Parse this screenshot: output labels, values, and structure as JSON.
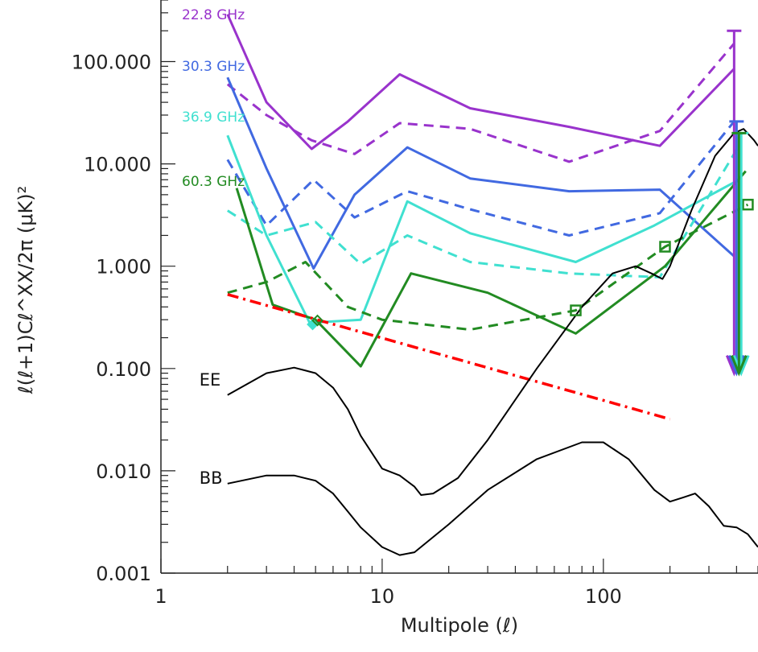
{
  "chart_data": {
    "type": "line",
    "title": "",
    "xlabel": "Multipole (ℓ)",
    "ylabel": "ℓ(ℓ+1)Cℓ^XX/2π   (μK)²",
    "x_scale": "log",
    "y_scale": "log",
    "xlim": [
      1,
      500
    ],
    "ylim": [
      0.001,
      400
    ],
    "x_ticks": [
      {
        "value": 1,
        "label": "1"
      },
      {
        "value": 10,
        "label": "10"
      },
      {
        "value": 100,
        "label": "100"
      }
    ],
    "y_ticks": [
      {
        "value": 0.001,
        "label": "0.001"
      },
      {
        "value": 0.01,
        "label": "0.010"
      },
      {
        "value": 0.1,
        "label": "0.100"
      },
      {
        "value": 1,
        "label": "1.000"
      },
      {
        "value": 10,
        "label": "10.000"
      },
      {
        "value": 100,
        "label": "100.000"
      }
    ],
    "grid": false,
    "series": [
      {
        "name": "22.8 GHz",
        "color": "#9933cc",
        "style": "solid",
        "points": [
          [
            2,
            290
          ],
          [
            3,
            40
          ],
          [
            4.8,
            14
          ],
          [
            7,
            26
          ],
          [
            12,
            75
          ],
          [
            25,
            35
          ],
          [
            70,
            23
          ],
          [
            180,
            15
          ],
          [
            390,
            85
          ]
        ]
      },
      {
        "name": "",
        "color": "#9933cc",
        "style": "dashed",
        "points": [
          [
            2,
            60
          ],
          [
            3,
            30
          ],
          [
            4.8,
            17
          ],
          [
            7.5,
            12.5
          ],
          [
            12,
            25
          ],
          [
            25,
            22
          ],
          [
            70,
            10.5
          ],
          [
            180,
            21
          ],
          [
            390,
            150
          ]
        ]
      },
      {
        "name": "30.3 GHz",
        "color": "#4169e1",
        "style": "solid",
        "points": [
          [
            2,
            70
          ],
          [
            3,
            9
          ],
          [
            4.9,
            0.95
          ],
          [
            7.5,
            5
          ],
          [
            13,
            14.5
          ],
          [
            25,
            7.2
          ],
          [
            70,
            5.4
          ],
          [
            180,
            5.6
          ],
          [
            390,
            1.25
          ]
        ]
      },
      {
        "name": "",
        "color": "#4169e1",
        "style": "dashed",
        "points": [
          [
            2,
            11
          ],
          [
            3,
            2.5
          ],
          [
            4.9,
            7
          ],
          [
            7.5,
            3
          ],
          [
            13,
            5.4
          ],
          [
            25,
            3.6
          ],
          [
            70,
            2
          ],
          [
            180,
            3.3
          ],
          [
            390,
            26
          ]
        ]
      },
      {
        "name": "36.9 GHz",
        "color": "#40e0d0",
        "style": "solid",
        "points": [
          [
            2,
            19
          ],
          [
            3,
            2
          ],
          [
            4.7,
            0.28
          ],
          [
            8,
            0.3
          ],
          [
            13,
            4.3
          ],
          [
            25,
            2.1
          ],
          [
            75,
            1.1
          ],
          [
            170,
            2.5
          ],
          [
            410,
            7
          ]
        ]
      },
      {
        "name": "",
        "color": "#40e0d0",
        "style": "dashed",
        "points": [
          [
            2,
            3.5
          ],
          [
            3,
            2
          ],
          [
            5,
            2.7
          ],
          [
            8,
            1.05
          ],
          [
            13,
            2
          ],
          [
            25,
            1.1
          ],
          [
            70,
            0.85
          ],
          [
            180,
            0.78
          ],
          [
            410,
            15
          ]
        ]
      },
      {
        "name": "60.3 GHz",
        "color": "#228b22",
        "style": "solid",
        "points": [
          [
            2.2,
            5.8
          ],
          [
            3.2,
            0.42
          ],
          [
            5,
            0.3
          ],
          [
            8,
            0.105
          ],
          [
            13.5,
            0.85
          ],
          [
            30,
            0.55
          ],
          [
            75,
            0.22
          ],
          [
            190,
            1
          ],
          [
            440,
            8.5
          ]
        ]
      },
      {
        "name": "",
        "color": "#228b22",
        "style": "dashed",
        "points": [
          [
            2,
            0.55
          ],
          [
            3,
            0.7
          ],
          [
            4.5,
            1.1
          ],
          [
            7,
            0.4
          ],
          [
            10,
            0.3
          ],
          [
            25,
            0.24
          ],
          [
            75,
            0.37
          ],
          [
            190,
            1.55
          ],
          [
            450,
            4
          ]
        ]
      },
      {
        "name": "",
        "color": "#ff0000",
        "style": "dashdot",
        "points": [
          [
            2,
            0.53
          ],
          [
            200,
            0.032
          ]
        ]
      },
      {
        "name": "EE",
        "color": "#000000",
        "style": "solid",
        "points": [
          [
            2,
            0.055
          ],
          [
            3,
            0.09
          ],
          [
            4,
            0.102
          ],
          [
            5,
            0.09
          ],
          [
            6,
            0.065
          ],
          [
            7,
            0.04
          ],
          [
            8,
            0.022
          ],
          [
            10,
            0.0105
          ],
          [
            12,
            0.009
          ],
          [
            14,
            0.007
          ],
          [
            15,
            0.0058
          ],
          [
            17,
            0.006
          ],
          [
            22,
            0.0085
          ],
          [
            30,
            0.02
          ],
          [
            50,
            0.1
          ],
          [
            80,
            0.4
          ],
          [
            110,
            0.85
          ],
          [
            140,
            1.0
          ],
          [
            165,
            0.85
          ],
          [
            185,
            0.75
          ],
          [
            200,
            1.0
          ],
          [
            250,
            3.5
          ],
          [
            320,
            12
          ],
          [
            390,
            20
          ],
          [
            430,
            22
          ],
          [
            480,
            17
          ],
          [
            500,
            15
          ]
        ]
      },
      {
        "name": "BB",
        "color": "#000000",
        "style": "solid",
        "points": [
          [
            2,
            0.0075
          ],
          [
            3,
            0.009
          ],
          [
            4,
            0.009
          ],
          [
            5,
            0.008
          ],
          [
            6,
            0.006
          ],
          [
            7,
            0.004
          ],
          [
            8,
            0.0028
          ],
          [
            10,
            0.0018
          ],
          [
            12,
            0.0015
          ],
          [
            14,
            0.0016
          ],
          [
            20,
            0.003
          ],
          [
            30,
            0.0065
          ],
          [
            50,
            0.013
          ],
          [
            80,
            0.019
          ],
          [
            100,
            0.019
          ],
          [
            130,
            0.013
          ],
          [
            170,
            0.0065
          ],
          [
            200,
            0.005
          ],
          [
            230,
            0.0055
          ],
          [
            260,
            0.006
          ],
          [
            300,
            0.0045
          ],
          [
            350,
            0.0029
          ],
          [
            400,
            0.0028
          ],
          [
            450,
            0.0024
          ],
          [
            500,
            0.0018
          ]
        ]
      }
    ],
    "markers": [
      {
        "color": "#40e0d0",
        "shape": "diamond",
        "points": [
          [
            4.85,
            0.27
          ]
        ]
      },
      {
        "color": "#228b22",
        "shape": "diamond",
        "points": [
          [
            5.1,
            0.295
          ]
        ]
      },
      {
        "color": "#228b22",
        "shape": "square",
        "points": [
          [
            75,
            0.37
          ],
          [
            190,
            1.55
          ],
          [
            450,
            4
          ]
        ]
      }
    ],
    "upper_limits": [
      {
        "color": "#9933cc",
        "x": 390,
        "from": 200,
        "to": 0.09
      },
      {
        "color": "#4169e1",
        "x": 400,
        "from": 26,
        "to": 0.09
      },
      {
        "color": "#40e0d0",
        "x": 420,
        "from": 20,
        "to": 0.09
      },
      {
        "color": "#228b22",
        "x": 410,
        "from": 20,
        "to": 0.09
      }
    ]
  }
}
